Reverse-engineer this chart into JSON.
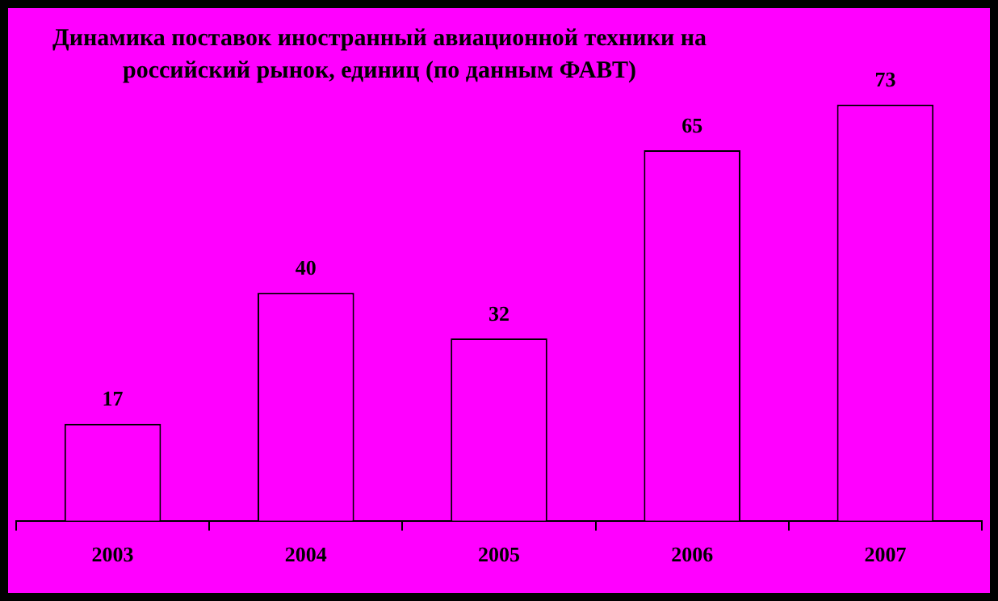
{
  "chart_data": {
    "type": "bar",
    "title": "Динамика поставок иностранный авиационной техники на российский рынок, единиц (по данным ФАВТ)",
    "categories": [
      "2003",
      "2004",
      "2005",
      "2006",
      "2007"
    ],
    "values": [
      17,
      40,
      32,
      65,
      73
    ],
    "color": "#ff00ff",
    "data_labels": true,
    "grid": false,
    "legend": false,
    "tick_labels": "x"
  }
}
